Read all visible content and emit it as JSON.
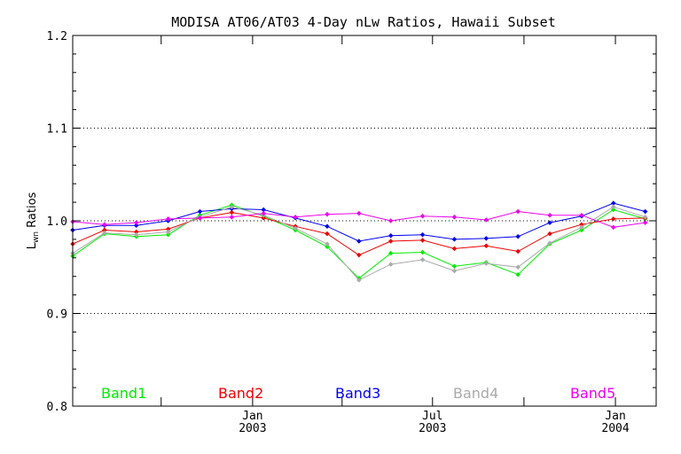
{
  "chart_data": {
    "type": "line",
    "title": "MODISA AT06/AT03 4-Day nLw Ratios, Hawaii Subset",
    "ylabel": {
      "main": "L",
      "sub": "wn",
      "rest": " Ratios"
    },
    "xlabel": "",
    "ylim": [
      0.8,
      1.2
    ],
    "yticks": [
      0.8,
      0.9,
      1.0,
      1.1,
      1.2
    ],
    "ytick_labels": [
      "0.8",
      "0.9",
      "1.0",
      "1.1",
      "1.2"
    ],
    "grid_lines": [
      0.9,
      1.0,
      1.1
    ],
    "xlim": [
      "2002-07-04",
      "2004-02-11"
    ],
    "xticks": [
      {
        "date": "2003-01-01",
        "line1": "Jan",
        "line2": "2003"
      },
      {
        "date": "2003-07-01",
        "line1": "Jul",
        "line2": "2003"
      },
      {
        "date": "2004-01-01",
        "line1": "Jan",
        "line2": "2004"
      }
    ],
    "xminor_ticks": [
      "2002-10-01",
      "2003-04-01",
      "2003-10-01"
    ],
    "dates": [
      "2002-07-04",
      "2002-08-05",
      "2002-09-06",
      "2002-10-08",
      "2002-11-09",
      "2002-12-11",
      "2003-01-12",
      "2003-02-13",
      "2003-03-17",
      "2003-04-18",
      "2003-05-20",
      "2003-06-21",
      "2003-07-23",
      "2003-08-24",
      "2003-09-25",
      "2003-10-27",
      "2003-11-28",
      "2003-12-30",
      "2004-01-31"
    ],
    "series": [
      {
        "name": "Band1",
        "color": "#00ee00",
        "values": [
          0.962,
          0.986,
          0.983,
          0.985,
          1.006,
          1.017,
          1.005,
          0.99,
          0.972,
          0.938,
          0.965,
          0.966,
          0.951,
          0.955,
          0.942,
          0.975,
          0.99,
          1.012,
          1.002
        ]
      },
      {
        "name": "Band2",
        "color": "#ee0000",
        "values": [
          0.975,
          0.99,
          0.988,
          0.991,
          1.003,
          1.009,
          1.003,
          0.994,
          0.986,
          0.963,
          0.978,
          0.979,
          0.97,
          0.973,
          0.967,
          0.986,
          0.996,
          1.002,
          1.003
        ]
      },
      {
        "name": "Band3",
        "color": "#0000ee",
        "values": [
          0.99,
          0.995,
          0.995,
          1.0,
          1.01,
          1.013,
          1.012,
          1.003,
          0.994,
          0.978,
          0.984,
          0.985,
          0.98,
          0.981,
          0.983,
          0.998,
          1.005,
          1.019,
          1.01
        ]
      },
      {
        "name": "Band4",
        "color": "#aaaaaa",
        "values": [
          0.965,
          0.987,
          0.985,
          0.988,
          1.004,
          1.015,
          1.006,
          0.992,
          0.975,
          0.936,
          0.953,
          0.958,
          0.946,
          0.954,
          0.95,
          0.976,
          0.993,
          1.015,
          1.004
        ]
      },
      {
        "name": "Band5",
        "color": "#ee00ee",
        "values": [
          0.999,
          0.996,
          0.998,
          1.002,
          1.003,
          1.004,
          1.008,
          1.004,
          1.007,
          1.008,
          1.0,
          1.005,
          1.004,
          1.001,
          1.01,
          1.006,
          1.006,
          0.993,
          0.998
        ]
      }
    ],
    "legend_placement": "bottom, inside plot, in a row"
  }
}
